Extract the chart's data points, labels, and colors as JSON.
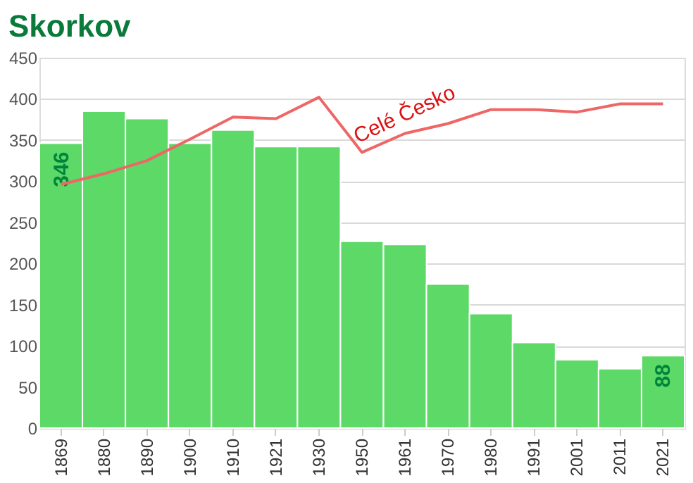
{
  "chart_data": {
    "type": "bar",
    "title": "Skorkov",
    "categories": [
      "1869",
      "1880",
      "1890",
      "1900",
      "1910",
      "1921",
      "1930",
      "1950",
      "1961",
      "1970",
      "1980",
      "1991",
      "2001",
      "2011",
      "2021"
    ],
    "series": [
      {
        "color": "#5cd966",
        "values": [
          346,
          385,
          376,
          346,
          362,
          342,
          342,
          227,
          223,
          175,
          139,
          104,
          83,
          72,
          88
        ],
        "value_labels": [
          "346",
          null,
          null,
          null,
          null,
          null,
          null,
          null,
          null,
          null,
          null,
          null,
          null,
          null,
          "88"
        ]
      },
      {
        "type": "line",
        "name": "Celé Česko",
        "color": "#ee6666",
        "values": [
          296,
          309,
          325,
          351,
          378,
          376,
          402,
          335,
          358,
          370,
          387,
          387,
          384,
          394,
          394
        ]
      }
    ],
    "ylim": [
      0,
      450
    ],
    "yticks": [
      0,
      50,
      100,
      150,
      200,
      250,
      300,
      350,
      400,
      450
    ],
    "grid": "y"
  }
}
